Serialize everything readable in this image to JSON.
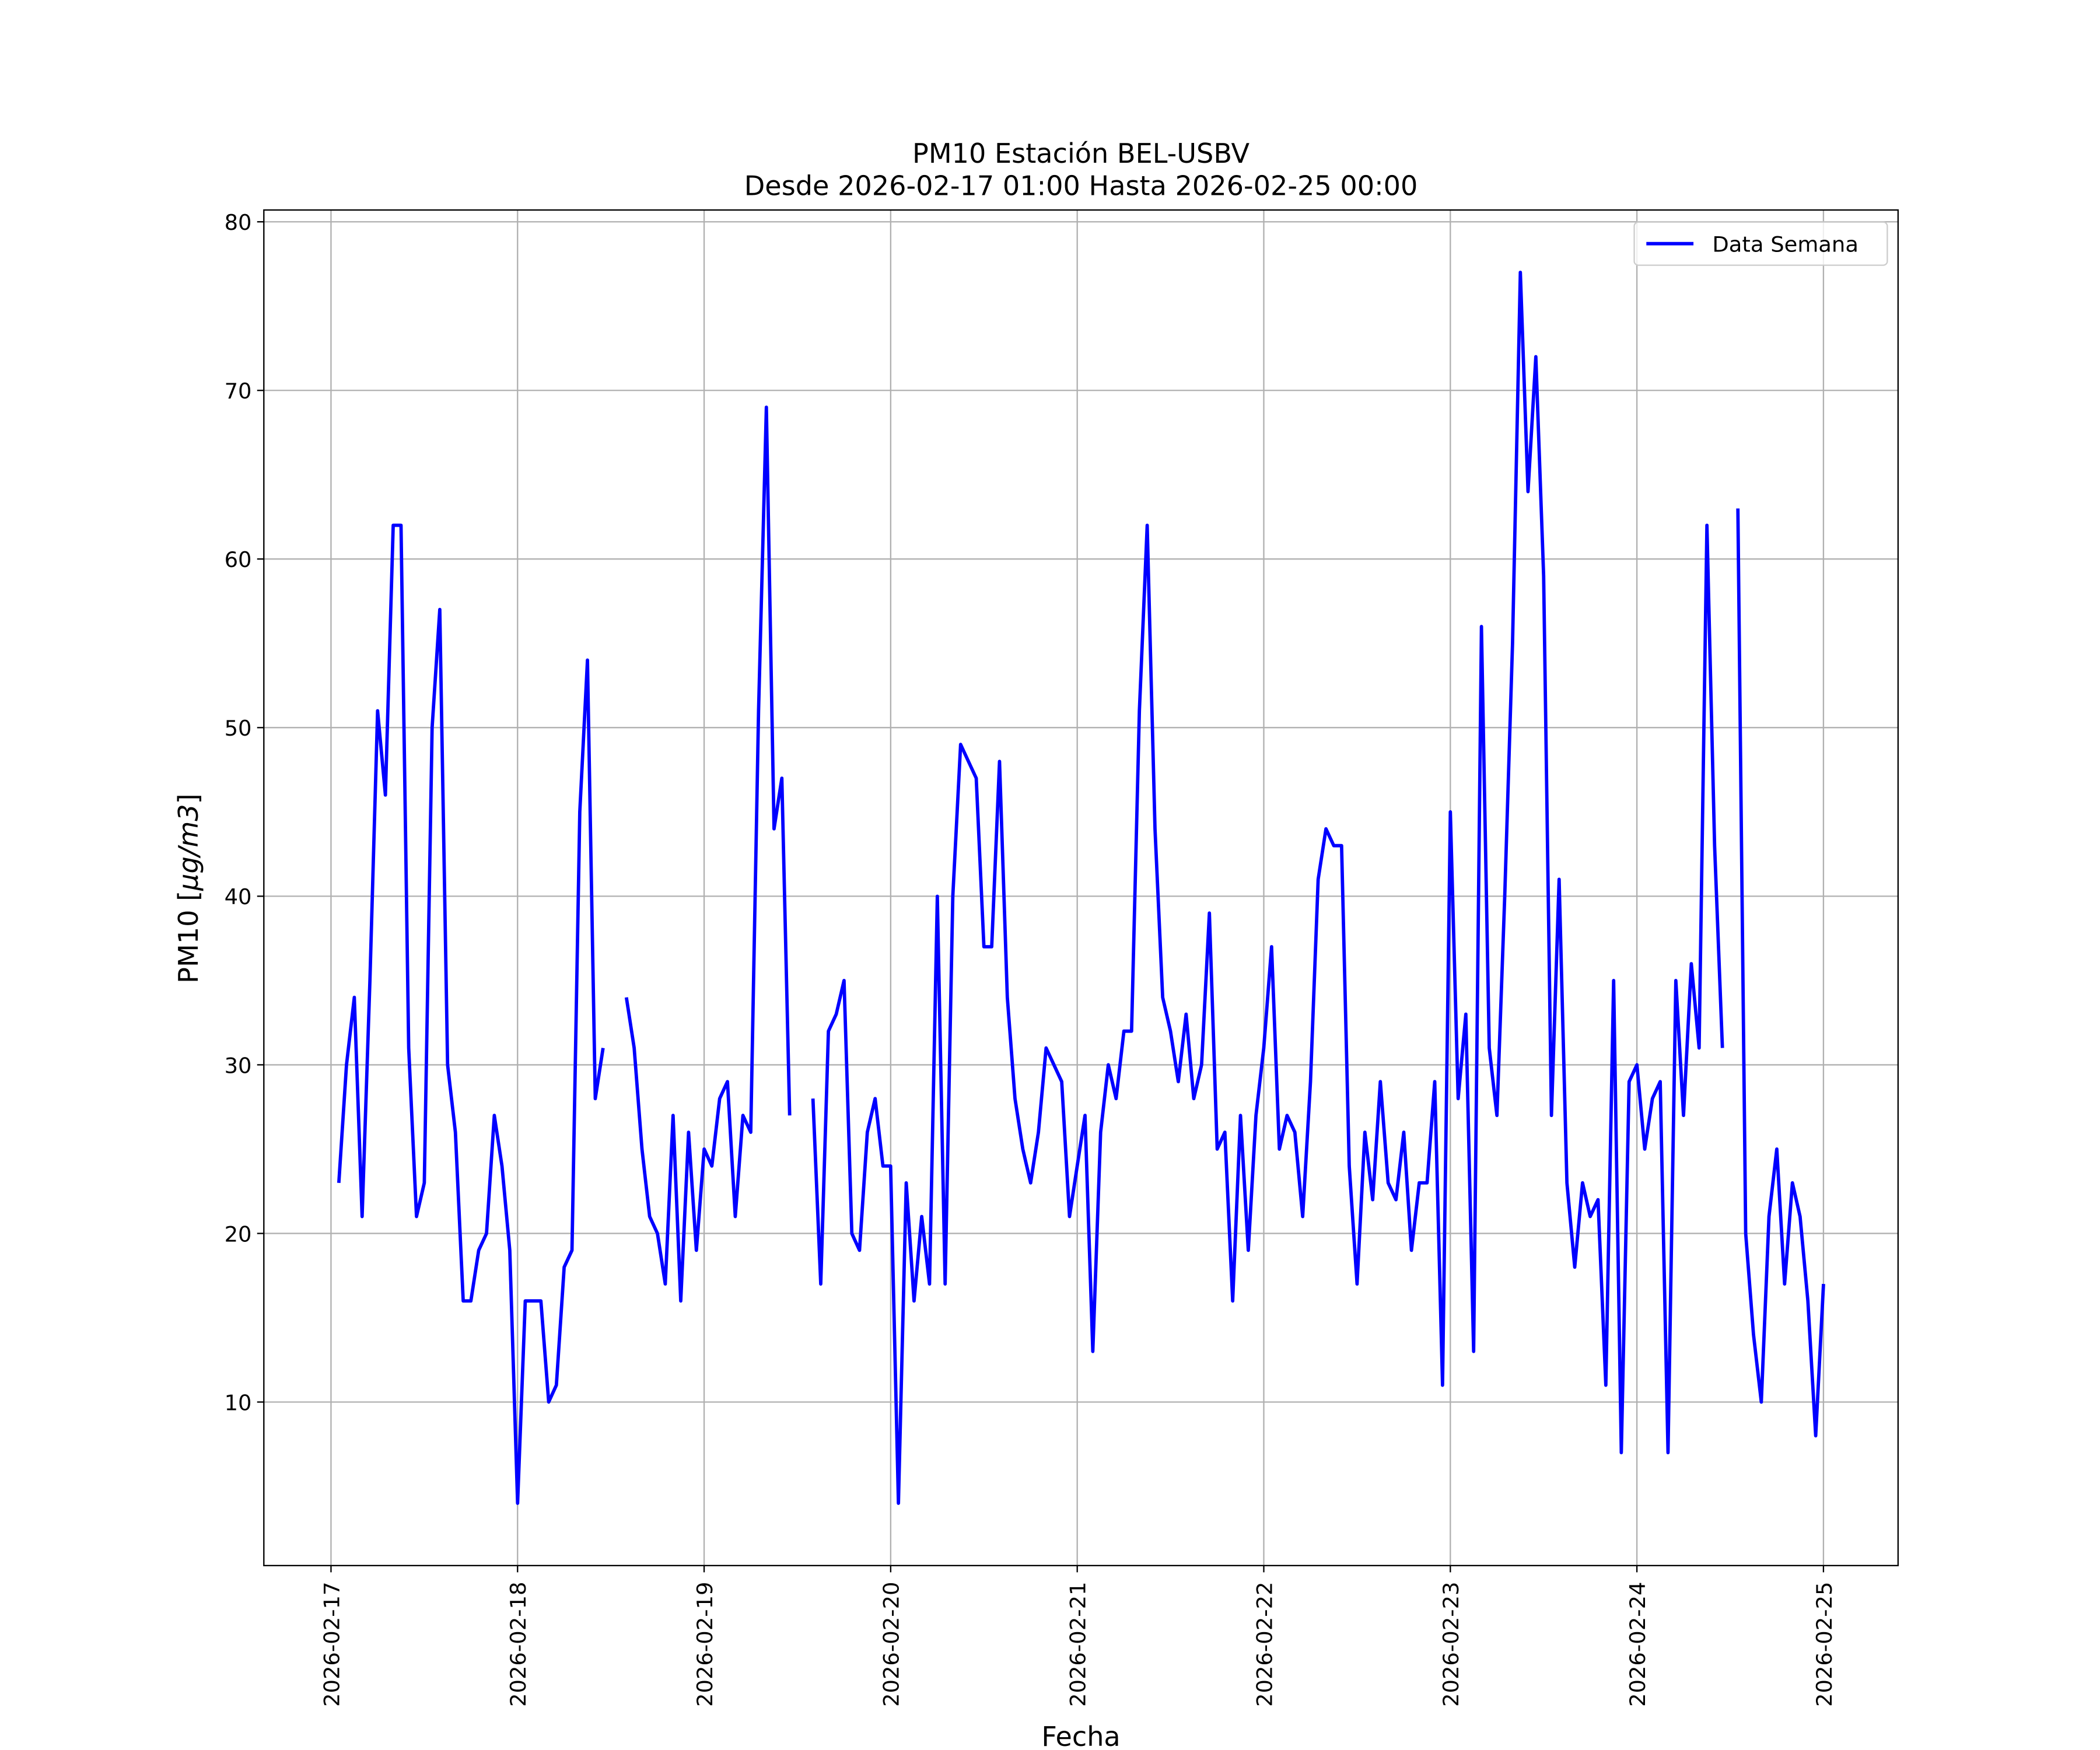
{
  "chart_data": {
    "type": "line",
    "title": "PM10 Estación BEL-USBV",
    "subtitle": "Desde 2026-02-17 01:00 Hasta 2026-02-25 00:00",
    "xlabel": "Fecha",
    "ylabel_prefix": "PM10 [",
    "ylabel_unit": "μg/m3",
    "ylabel_suffix": "]",
    "x_start": "2026-02-17 01:00",
    "interval_hours": 1,
    "xlim_days": [
      -0.36,
      8.4
    ],
    "ylim": [
      0.3,
      80.7
    ],
    "grid": true,
    "legend_position": "top-right",
    "x_ticks": [
      "2026-02-17",
      "2026-02-18",
      "2026-02-19",
      "2026-02-20",
      "2026-02-21",
      "2026-02-22",
      "2026-02-23",
      "2026-02-24",
      "2026-02-25"
    ],
    "y_ticks": [
      10,
      20,
      30,
      40,
      50,
      60,
      70,
      80
    ],
    "series": [
      {
        "name": "Data Semana",
        "color": "#0000ff",
        "values": [
          23,
          30,
          34,
          21,
          35,
          51,
          46,
          62,
          62,
          31,
          21,
          23,
          50,
          57,
          30,
          26,
          16,
          16,
          19,
          20,
          27,
          24,
          19,
          4,
          16,
          16,
          16,
          10,
          11,
          18,
          19,
          45,
          54,
          28,
          31,
          null,
          null,
          34,
          31,
          25,
          21,
          20,
          17,
          27,
          16,
          26,
          19,
          25,
          24,
          28,
          29,
          21,
          27,
          26,
          51,
          69,
          44,
          47,
          27,
          null,
          null,
          28,
          17,
          32,
          33,
          35,
          20,
          19,
          26,
          28,
          24,
          24,
          4,
          23,
          16,
          21,
          17,
          40,
          17,
          40,
          49,
          48,
          47,
          37,
          37,
          48,
          34,
          28,
          25,
          23,
          26,
          31,
          30,
          29,
          21,
          24,
          27,
          13,
          26,
          30,
          28,
          32,
          32,
          51,
          62,
          44,
          34,
          32,
          29,
          33,
          28,
          30,
          39,
          25,
          26,
          16,
          27,
          19,
          27,
          31,
          37,
          25,
          27,
          26,
          21,
          29,
          41,
          44,
          43,
          43,
          24,
          17,
          26,
          22,
          29,
          23,
          22,
          26,
          19,
          23,
          23,
          29,
          11,
          45,
          28,
          33,
          13,
          56,
          31,
          27,
          40,
          55,
          77,
          64,
          72,
          59,
          27,
          41,
          23,
          18,
          23,
          21,
          22,
          11,
          35,
          7,
          29,
          30,
          25,
          28,
          29,
          7,
          35,
          27,
          36,
          31,
          62,
          43,
          31,
          null,
          63,
          20,
          14,
          10,
          21,
          25,
          17,
          23,
          21,
          16,
          8,
          17
        ]
      }
    ]
  }
}
